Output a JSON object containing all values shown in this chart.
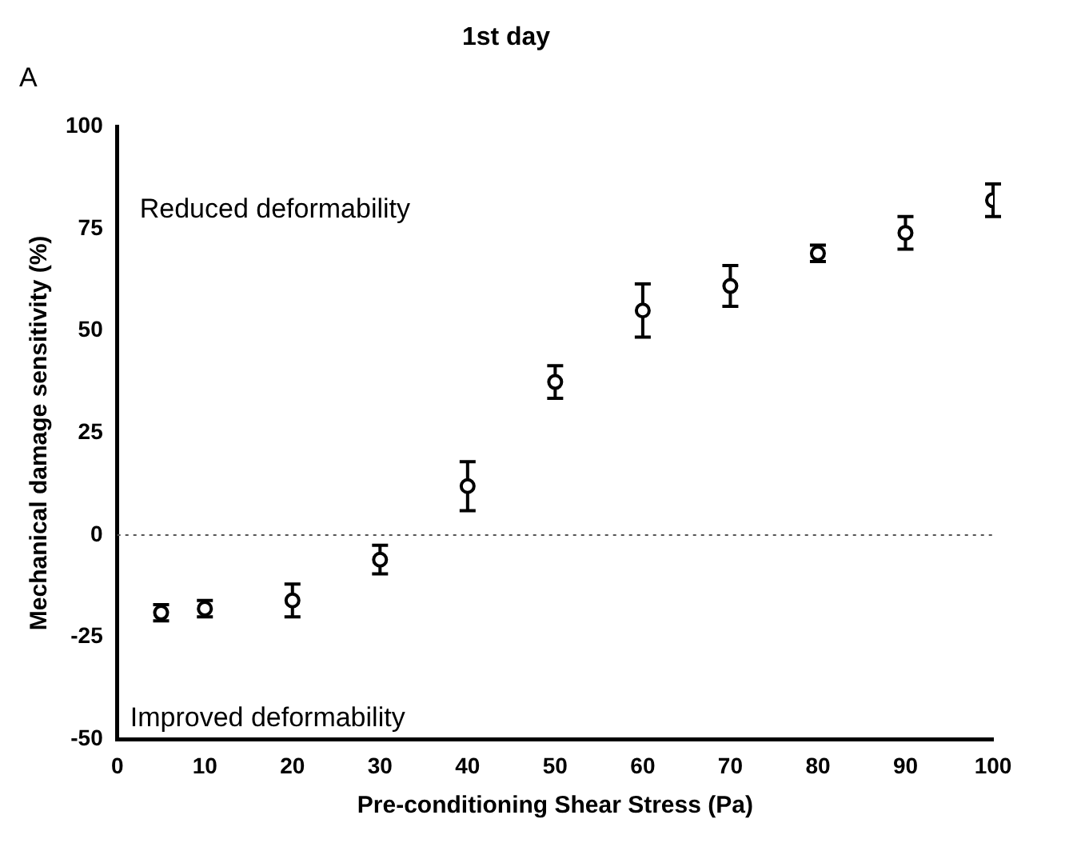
{
  "chart_data": {
    "type": "scatter",
    "title": "1st day",
    "xlabel": "Pre-conditioning Shear Stress (Pa)",
    "ylabel": "Mechanical damage sensitivity (%)",
    "annotations": [
      "A",
      "Reduced deformability",
      "Improved deformability"
    ],
    "x": [
      5,
      10,
      20,
      30,
      40,
      50,
      60,
      70,
      80,
      90,
      100
    ],
    "series": [
      {
        "color": "#000000",
        "values": [
          -19,
          -18,
          -16,
          -6,
          12,
          37.5,
          55,
          61,
          69,
          74,
          82
        ],
        "errors": [
          2,
          2,
          4,
          3.5,
          6,
          4,
          6.5,
          5,
          2,
          4,
          4
        ]
      }
    ],
    "xlim": [
      0,
      100
    ],
    "xticks": [
      0,
      10,
      20,
      30,
      40,
      50,
      60,
      70,
      80,
      90,
      100
    ],
    "ylim": [
      -50,
      100
    ],
    "yticks": [
      -50,
      -25,
      0,
      25,
      50,
      75,
      100
    ],
    "ref_lines": [
      {
        "axis": "y",
        "value": 0,
        "line_style": "dotted",
        "color": "#555555"
      }
    ],
    "marker": "circle",
    "grid": false,
    "legend": false
  }
}
